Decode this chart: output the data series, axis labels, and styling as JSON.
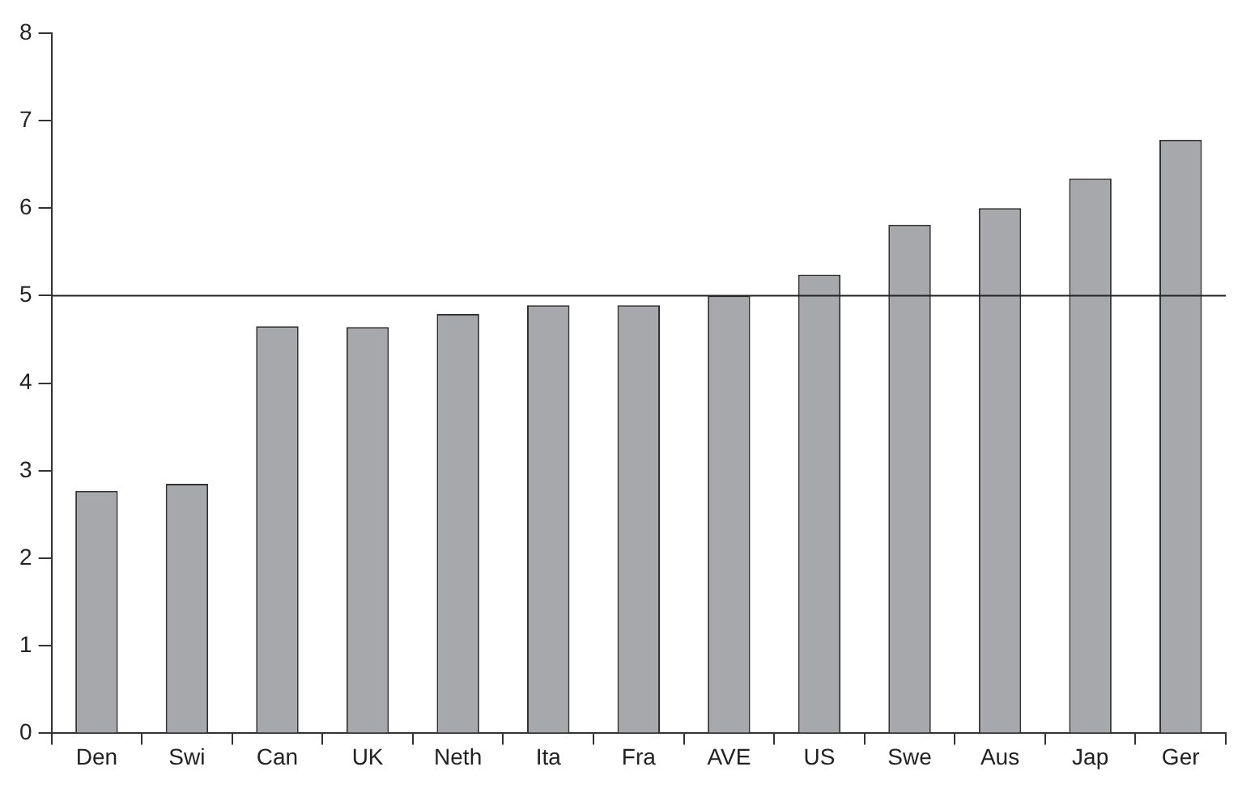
{
  "chart_data": {
    "type": "bar",
    "categories": [
      "Den",
      "Swi",
      "Can",
      "UK",
      "Neth",
      "Ita",
      "Fra",
      "AVE",
      "US",
      "Swe",
      "Aus",
      "Jap",
      "Ger"
    ],
    "values": [
      2.77,
      2.85,
      4.65,
      4.64,
      4.79,
      4.89,
      4.89,
      5.0,
      5.24,
      5.81,
      6.0,
      6.34,
      6.78
    ],
    "color": "#a7a8ab",
    "ylim": [
      0,
      8
    ],
    "yticks": [
      0,
      1,
      2,
      3,
      4,
      5,
      6,
      7,
      8
    ],
    "ref_lines": [
      {
        "axis": "y",
        "value": 5,
        "color": "#222222"
      }
    ],
    "grid": false,
    "legend": false
  }
}
